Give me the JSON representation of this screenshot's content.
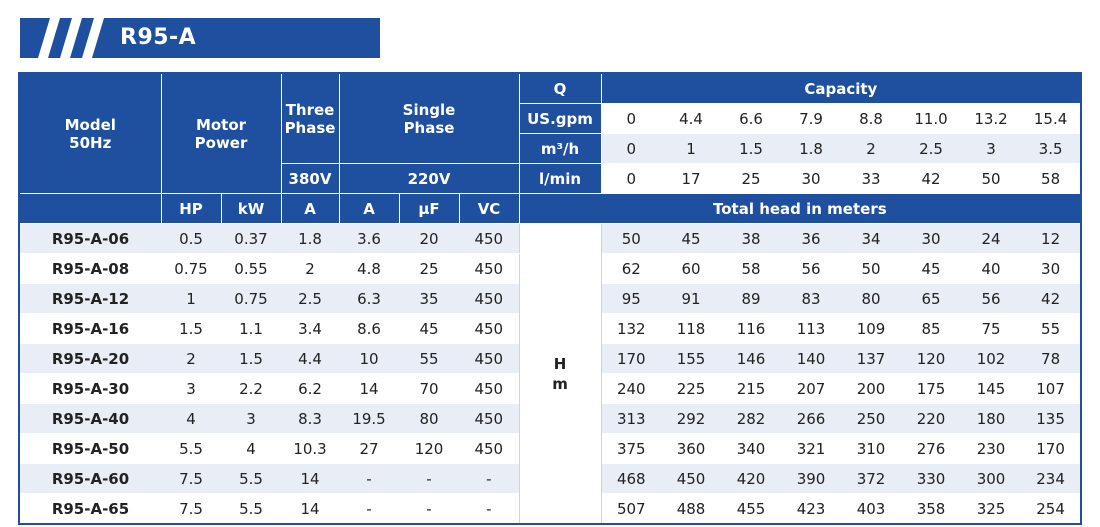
{
  "title": "R95-A",
  "header": {
    "model": "Model",
    "model_sub": "50Hz",
    "motor": "Motor",
    "motor_sub": "Power",
    "three": "Three",
    "three_sub": "Phase",
    "single": "Single",
    "single_sub": "Phase",
    "three_voltage": "380V",
    "single_voltage": "220V",
    "q": "Q",
    "capacity": "Capacity",
    "units": [
      "US.gpm",
      "m³/h",
      "l/min"
    ],
    "cols": [
      "HP",
      "kW",
      "A",
      "A",
      "μF",
      "VC"
    ],
    "total_head": "Total head in meters",
    "hm_h": "H",
    "hm_m": "m"
  },
  "capacity": {
    "gpm": [
      "0",
      "4.4",
      "6.6",
      "7.9",
      "8.8",
      "11.0",
      "13.2",
      "15.4"
    ],
    "m3h": [
      "0",
      "1",
      "1.5",
      "1.8",
      "2",
      "2.5",
      "3",
      "3.5"
    ],
    "lmin": [
      "0",
      "17",
      "25",
      "30",
      "33",
      "42",
      "50",
      "58"
    ]
  },
  "rows": [
    {
      "model": "R95-A-06",
      "hp": "0.5",
      "kw": "0.37",
      "a3": "1.8",
      "a1": "3.6",
      "uf": "20",
      "vc": "450",
      "head": [
        "50",
        "45",
        "38",
        "36",
        "34",
        "30",
        "24",
        "12"
      ]
    },
    {
      "model": "R95-A-08",
      "hp": "0.75",
      "kw": "0.55",
      "a3": "2",
      "a1": "4.8",
      "uf": "25",
      "vc": "450",
      "head": [
        "62",
        "60",
        "58",
        "56",
        "50",
        "45",
        "40",
        "30"
      ]
    },
    {
      "model": "R95-A-12",
      "hp": "1",
      "kw": "0.75",
      "a3": "2.5",
      "a1": "6.3",
      "uf": "35",
      "vc": "450",
      "head": [
        "95",
        "91",
        "89",
        "83",
        "80",
        "65",
        "56",
        "42"
      ]
    },
    {
      "model": "R95-A-16",
      "hp": "1.5",
      "kw": "1.1",
      "a3": "3.4",
      "a1": "8.6",
      "uf": "45",
      "vc": "450",
      "head": [
        "132",
        "118",
        "116",
        "113",
        "109",
        "85",
        "75",
        "55"
      ]
    },
    {
      "model": "R95-A-20",
      "hp": "2",
      "kw": "1.5",
      "a3": "4.4",
      "a1": "10",
      "uf": "55",
      "vc": "450",
      "head": [
        "170",
        "155",
        "146",
        "140",
        "137",
        "120",
        "102",
        "78"
      ]
    },
    {
      "model": "R95-A-30",
      "hp": "3",
      "kw": "2.2",
      "a3": "6.2",
      "a1": "14",
      "uf": "70",
      "vc": "450",
      "head": [
        "240",
        "225",
        "215",
        "207",
        "200",
        "175",
        "145",
        "107"
      ]
    },
    {
      "model": "R95-A-40",
      "hp": "4",
      "kw": "3",
      "a3": "8.3",
      "a1": "19.5",
      "uf": "80",
      "vc": "450",
      "head": [
        "313",
        "292",
        "282",
        "266",
        "250",
        "220",
        "180",
        "135"
      ]
    },
    {
      "model": "R95-A-50",
      "hp": "5.5",
      "kw": "4",
      "a3": "10.3",
      "a1": "27",
      "uf": "120",
      "vc": "450",
      "head": [
        "375",
        "360",
        "340",
        "321",
        "310",
        "276",
        "230",
        "170"
      ]
    },
    {
      "model": "R95-A-60",
      "hp": "7.5",
      "kw": "5.5",
      "a3": "14",
      "a1": "-",
      "uf": "-",
      "vc": "-",
      "head": [
        "468",
        "450",
        "420",
        "390",
        "372",
        "330",
        "300",
        "234"
      ]
    },
    {
      "model": "R95-A-65",
      "hp": "7.5",
      "kw": "5.5",
      "a3": "14",
      "a1": "-",
      "uf": "-",
      "vc": "-",
      "head": [
        "507",
        "488",
        "455",
        "423",
        "403",
        "358",
        "325",
        "254"
      ]
    }
  ],
  "colors": {
    "accent": "#1f4f9f",
    "stripe": "#e9eef6"
  }
}
